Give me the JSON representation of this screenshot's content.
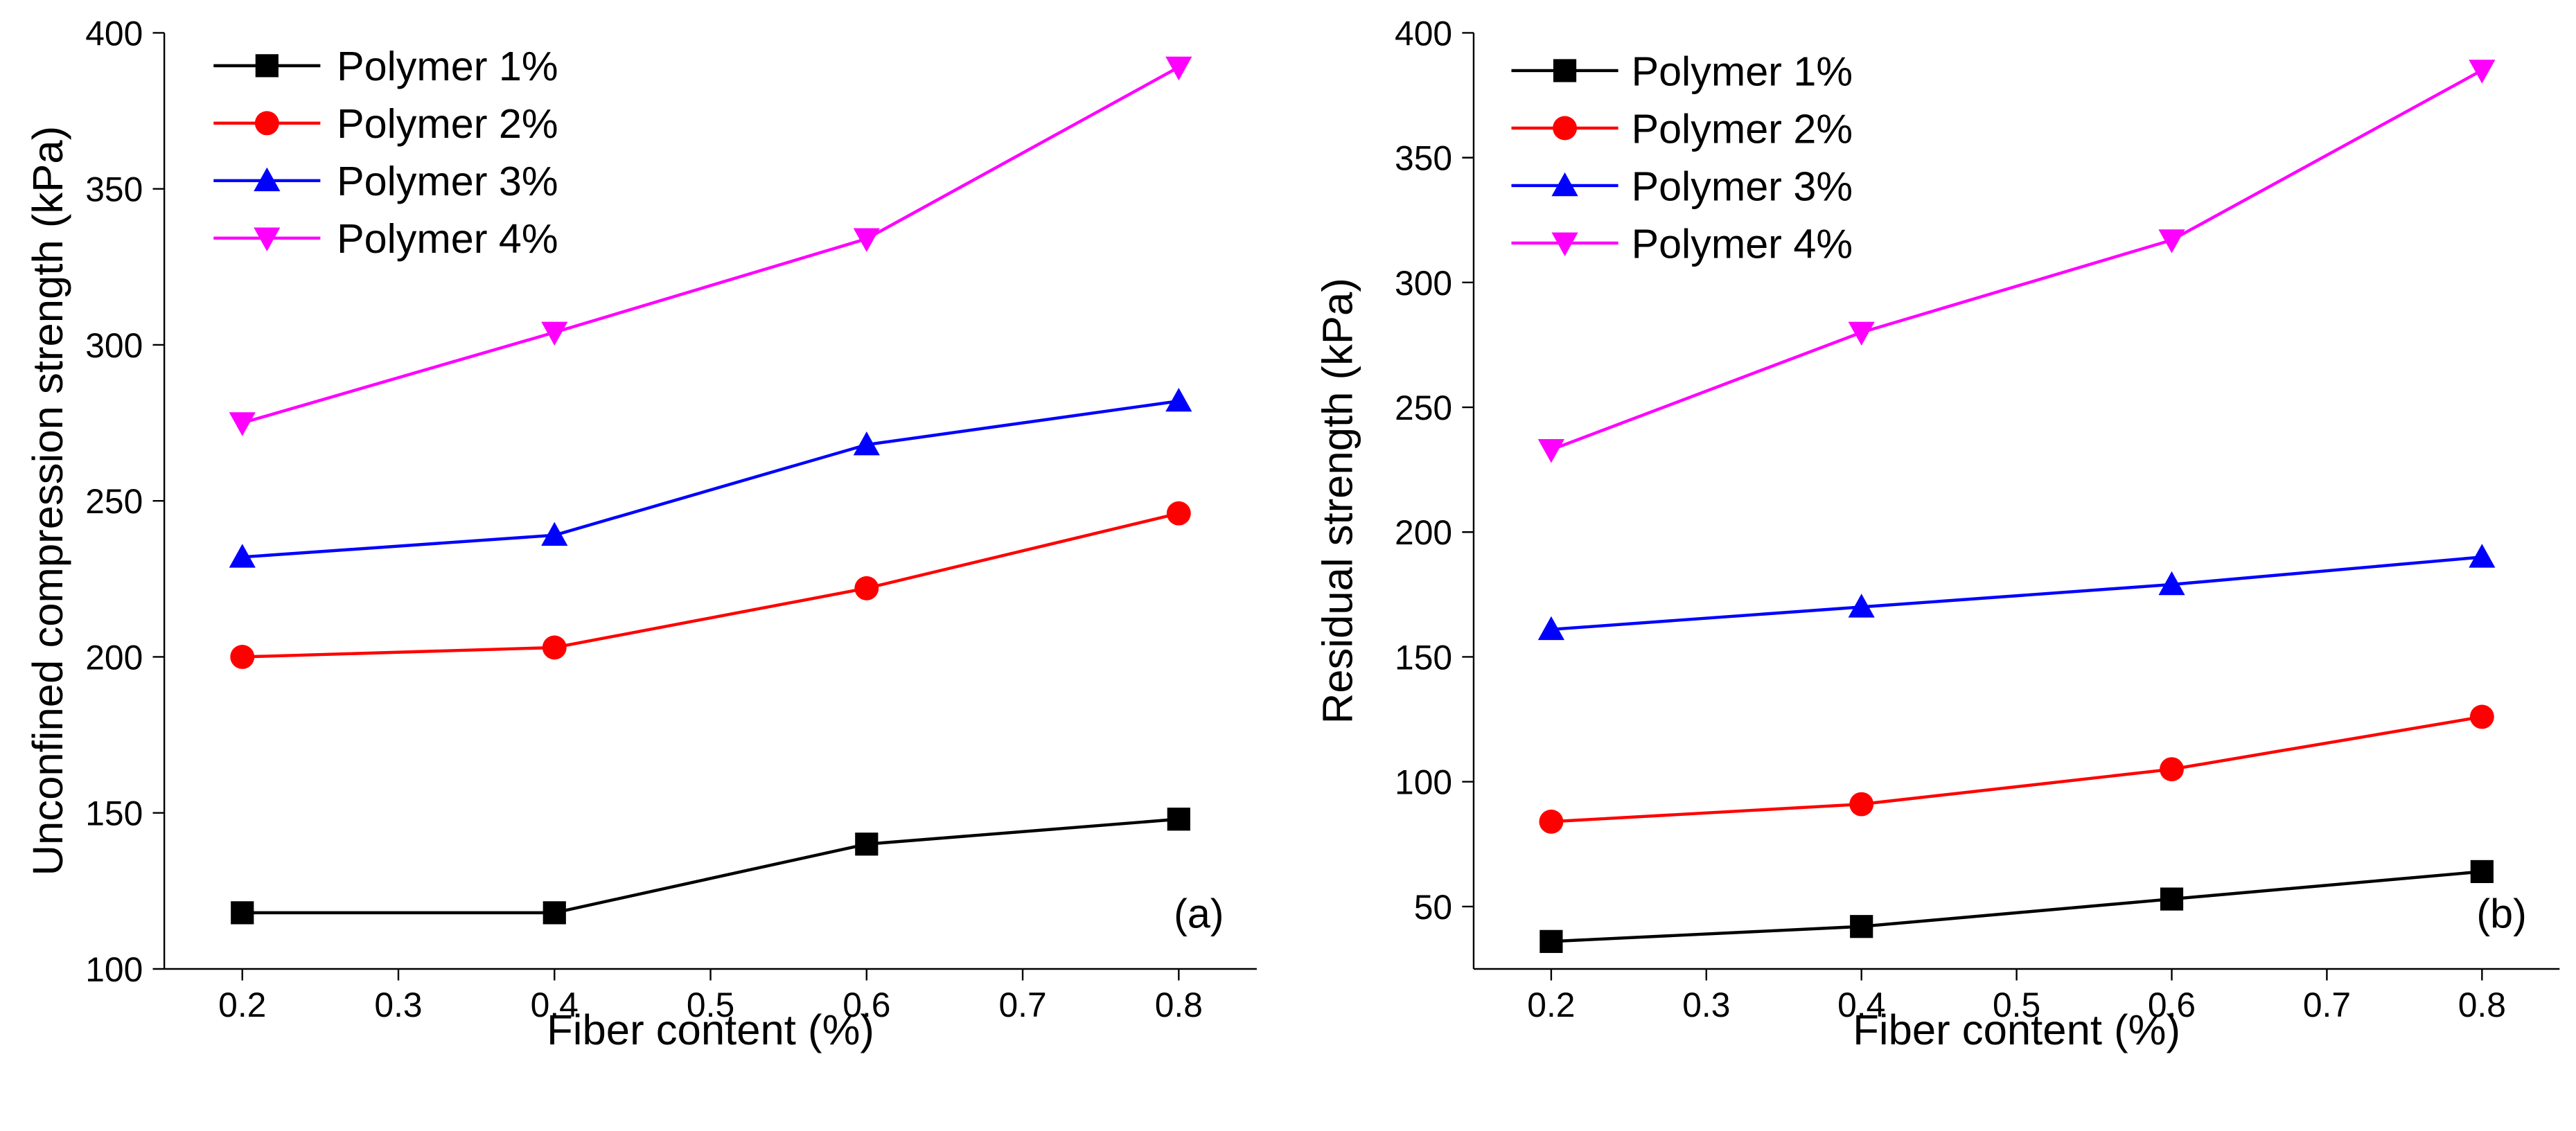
{
  "chart_data": [
    {
      "type": "line",
      "panel_label": "(a)",
      "xlabel": "Fiber content (%)",
      "ylabel": "Unconfined compression strength (kPa)",
      "xlim": [
        0.15,
        0.85
      ],
      "ylim": [
        100,
        400
      ],
      "xticks": [
        0.2,
        0.3,
        0.4,
        0.5,
        0.6,
        0.7,
        0.8
      ],
      "xtick_labels": [
        "0.2",
        "0.3",
        "0.4",
        "0.5",
        "0.6",
        "0.7",
        "0.8"
      ],
      "yticks": [
        100,
        150,
        200,
        250,
        300,
        350,
        400
      ],
      "ytick_labels": [
        "100",
        "150",
        "200",
        "250",
        "300",
        "350",
        "400"
      ],
      "grid": false,
      "legend_position": "top-left",
      "x": [
        0.2,
        0.4,
        0.6,
        0.8
      ],
      "series": [
        {
          "name": "Polymer 1%",
          "color": "#000000",
          "marker": "square",
          "values": [
            118,
            118,
            140,
            148
          ]
        },
        {
          "name": "Polymer 2%",
          "color": "#ff0000",
          "marker": "circle",
          "values": [
            200,
            203,
            222,
            246
          ]
        },
        {
          "name": "Polymer 3%",
          "color": "#0000ff",
          "marker": "triangle-up",
          "values": [
            232,
            239,
            268,
            282
          ]
        },
        {
          "name": "Polymer 4%",
          "color": "#ff00ff",
          "marker": "triangle-down",
          "values": [
            275,
            304,
            334,
            389
          ]
        }
      ]
    },
    {
      "type": "line",
      "panel_label": "(b)",
      "xlabel": "Fiber content (%)",
      "ylabel": "Residual strength (kPa)",
      "xlim": [
        0.15,
        0.85
      ],
      "ylim": [
        25,
        400
      ],
      "xticks": [
        0.2,
        0.3,
        0.4,
        0.5,
        0.6,
        0.7,
        0.8
      ],
      "xtick_labels": [
        "0.2",
        "0.3",
        "0.4",
        "0.5",
        "0.6",
        "0.7",
        "0.8"
      ],
      "yticks": [
        50,
        100,
        150,
        200,
        250,
        300,
        350,
        400
      ],
      "ytick_labels": [
        "50",
        "100",
        "150",
        "200",
        "250",
        "300",
        "350",
        "400"
      ],
      "grid": false,
      "legend_position": "top-left",
      "x": [
        0.2,
        0.4,
        0.6,
        0.8
      ],
      "series": [
        {
          "name": "Polymer 1%",
          "color": "#000000",
          "marker": "square",
          "values": [
            36,
            42,
            53,
            64
          ]
        },
        {
          "name": "Polymer 2%",
          "color": "#ff0000",
          "marker": "circle",
          "values": [
            84,
            91,
            105,
            126
          ]
        },
        {
          "name": "Polymer 3%",
          "color": "#0000ff",
          "marker": "triangle-up",
          "values": [
            161,
            170,
            179,
            190
          ]
        },
        {
          "name": "Polymer 4%",
          "color": "#ff00ff",
          "marker": "triangle-down",
          "values": [
            233,
            280,
            317,
            385
          ]
        }
      ]
    }
  ]
}
